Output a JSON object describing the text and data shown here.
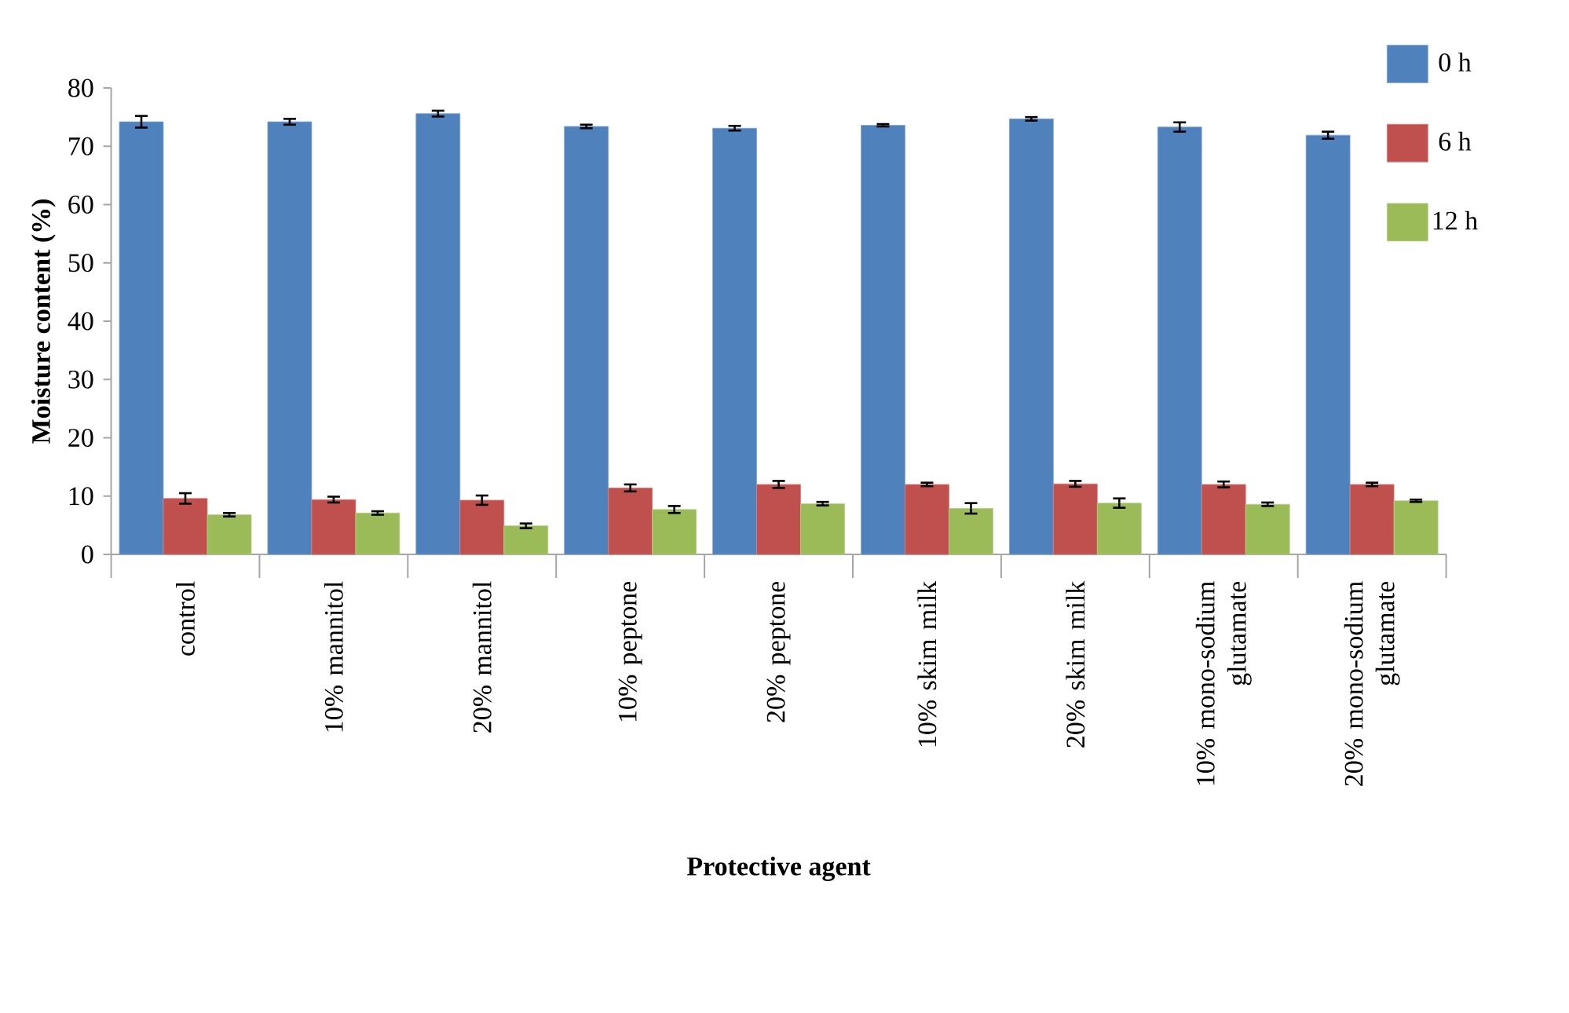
{
  "chart_data": {
    "type": "bar",
    "xlabel": "Protective agent",
    "ylabel": "Moisture content  (%)",
    "categories": [
      "control",
      "10% mannitol",
      "20% mannitol",
      "10% peptone",
      "20% peptone",
      "10% skim milk",
      "20% skim milk",
      "10% mono-sodium glutamate",
      "20% mono-sodium glutamate"
    ],
    "series": [
      {
        "name": "0 h",
        "color": "#4f81bd",
        "values": [
          74.2,
          74.2,
          75.6,
          73.4,
          73.1,
          73.6,
          74.7,
          73.3,
          71.9
        ],
        "errors": [
          1.0,
          0.5,
          0.5,
          0.3,
          0.4,
          0.2,
          0.3,
          0.8,
          0.6
        ]
      },
      {
        "name": "6 h",
        "color": "#c0504d",
        "values": [
          9.6,
          9.4,
          9.3,
          11.4,
          12.0,
          12.0,
          12.1,
          12.0,
          12.0
        ],
        "errors": [
          0.9,
          0.5,
          0.8,
          0.6,
          0.6,
          0.3,
          0.5,
          0.5,
          0.3
        ]
      },
      {
        "name": "12 h",
        "color": "#9bbb59",
        "values": [
          6.8,
          7.1,
          4.9,
          7.7,
          8.7,
          7.9,
          8.8,
          8.6,
          9.2
        ],
        "errors": [
          0.3,
          0.3,
          0.4,
          0.6,
          0.3,
          0.9,
          0.8,
          0.3,
          0.2
        ]
      }
    ],
    "ylim": [
      0,
      80
    ],
    "yticks": [
      0,
      10,
      20,
      30,
      40,
      50,
      60,
      70,
      80
    ],
    "grid": false,
    "legend": "top right"
  }
}
